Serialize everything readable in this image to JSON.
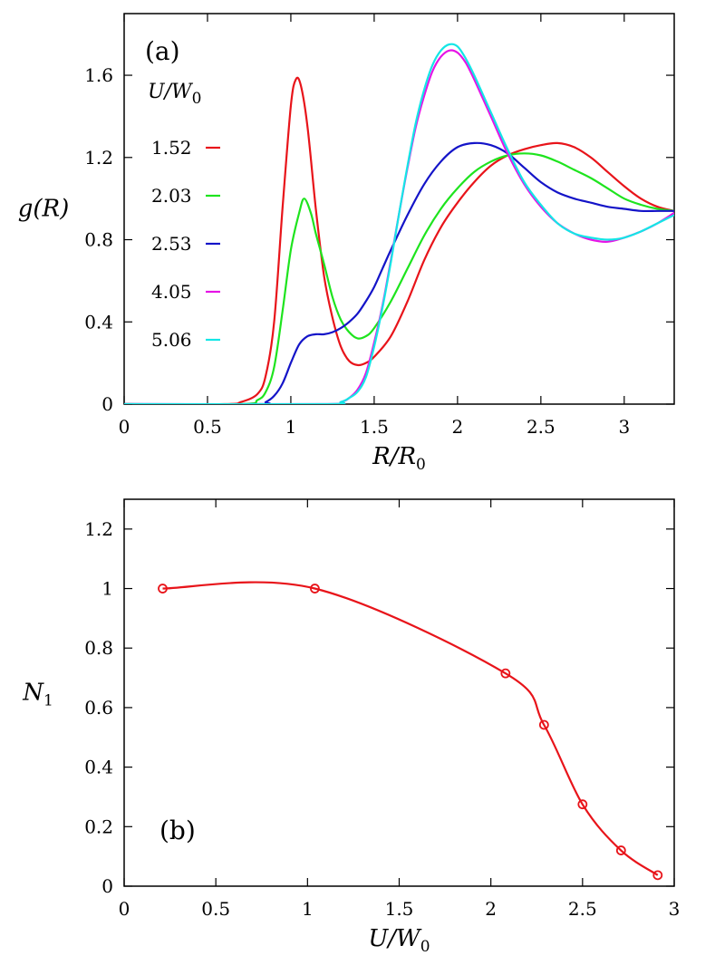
{
  "chart_data": [
    {
      "type": "line",
      "panel_label": "(a)",
      "xlabel": "R/R",
      "xlabel_sub": "0",
      "ylabel": "g(R)",
      "xlim": [
        0,
        3.3
      ],
      "ylim": [
        0,
        1.9
      ],
      "x_ticks": [
        0,
        0.5,
        1,
        1.5,
        2,
        2.5,
        3
      ],
      "x_tick_labels": [
        "0",
        "0.5",
        "1",
        "1.5",
        "2",
        "2.5",
        "3"
      ],
      "y_ticks": [
        0,
        0.4,
        0.8,
        1.2,
        1.6
      ],
      "y_tick_labels": [
        "0",
        "0.4",
        "0.8",
        "1.2",
        "1.6"
      ],
      "legend_title": "U/W",
      "legend_title_sub": "0",
      "legend_position": "left",
      "series": [
        {
          "name": "1.52",
          "color": "#e8141a",
          "x": [
            0,
            0.6,
            0.7,
            0.8,
            0.85,
            0.9,
            0.95,
            1.0,
            1.03,
            1.06,
            1.1,
            1.15,
            1.2,
            1.25,
            1.3,
            1.35,
            1.4,
            1.45,
            1.5,
            1.6,
            1.7,
            1.8,
            1.9,
            2.0,
            2.1,
            2.2,
            2.3,
            2.4,
            2.5,
            2.6,
            2.7,
            2.8,
            2.9,
            3.0,
            3.1,
            3.2,
            3.3
          ],
          "y": [
            0,
            0.0,
            0.01,
            0.05,
            0.14,
            0.4,
            0.95,
            1.45,
            1.58,
            1.55,
            1.35,
            0.95,
            0.62,
            0.42,
            0.28,
            0.21,
            0.19,
            0.2,
            0.23,
            0.33,
            0.5,
            0.7,
            0.86,
            0.98,
            1.08,
            1.16,
            1.21,
            1.24,
            1.26,
            1.27,
            1.25,
            1.2,
            1.13,
            1.06,
            1.0,
            0.96,
            0.94
          ]
        },
        {
          "name": "2.03",
          "color": "#1ee41e",
          "x": [
            0,
            0.7,
            0.8,
            0.85,
            0.9,
            0.95,
            1.0,
            1.05,
            1.08,
            1.12,
            1.15,
            1.2,
            1.25,
            1.3,
            1.35,
            1.4,
            1.45,
            1.5,
            1.6,
            1.7,
            1.8,
            1.9,
            2.0,
            2.1,
            2.2,
            2.3,
            2.4,
            2.5,
            2.6,
            2.7,
            2.8,
            2.9,
            3.0,
            3.1,
            3.2,
            3.3
          ],
          "y": [
            0,
            0.0,
            0.02,
            0.06,
            0.18,
            0.45,
            0.75,
            0.93,
            1.0,
            0.93,
            0.83,
            0.68,
            0.52,
            0.41,
            0.35,
            0.32,
            0.33,
            0.37,
            0.5,
            0.66,
            0.82,
            0.95,
            1.05,
            1.13,
            1.18,
            1.21,
            1.22,
            1.21,
            1.18,
            1.14,
            1.1,
            1.05,
            1.0,
            0.97,
            0.95,
            0.94
          ]
        },
        {
          "name": "2.53",
          "color": "#1414c8",
          "x": [
            0,
            0.8,
            0.85,
            0.9,
            0.95,
            1.0,
            1.05,
            1.1,
            1.15,
            1.2,
            1.25,
            1.3,
            1.35,
            1.4,
            1.45,
            1.5,
            1.55,
            1.6,
            1.7,
            1.8,
            1.9,
            2.0,
            2.1,
            2.2,
            2.3,
            2.4,
            2.5,
            2.6,
            2.7,
            2.8,
            2.9,
            3.0,
            3.1,
            3.2,
            3.3
          ],
          "y": [
            0,
            0.0,
            0.01,
            0.04,
            0.1,
            0.2,
            0.29,
            0.33,
            0.34,
            0.34,
            0.35,
            0.37,
            0.4,
            0.44,
            0.5,
            0.57,
            0.66,
            0.75,
            0.92,
            1.07,
            1.18,
            1.25,
            1.27,
            1.26,
            1.22,
            1.15,
            1.08,
            1.03,
            1.0,
            0.98,
            0.96,
            0.95,
            0.94,
            0.94,
            0.94
          ]
        },
        {
          "name": "4.05",
          "color": "#e614e6",
          "x": [
            0,
            1.2,
            1.3,
            1.35,
            1.4,
            1.45,
            1.5,
            1.55,
            1.6,
            1.65,
            1.7,
            1.75,
            1.8,
            1.85,
            1.9,
            1.95,
            2.0,
            2.05,
            2.1,
            2.2,
            2.3,
            2.4,
            2.5,
            2.6,
            2.7,
            2.8,
            2.9,
            3.0,
            3.1,
            3.2,
            3.3
          ],
          "y": [
            0,
            0.0,
            0.01,
            0.03,
            0.07,
            0.15,
            0.3,
            0.48,
            0.7,
            0.93,
            1.15,
            1.35,
            1.5,
            1.62,
            1.69,
            1.72,
            1.71,
            1.66,
            1.58,
            1.4,
            1.22,
            1.07,
            0.96,
            0.88,
            0.83,
            0.8,
            0.79,
            0.81,
            0.84,
            0.88,
            0.93
          ]
        },
        {
          "name": "5.06",
          "color": "#14e6e6",
          "x": [
            0,
            1.2,
            1.3,
            1.35,
            1.4,
            1.45,
            1.5,
            1.55,
            1.6,
            1.65,
            1.7,
            1.75,
            1.8,
            1.85,
            1.9,
            1.95,
            2.0,
            2.05,
            2.1,
            2.2,
            2.3,
            2.4,
            2.5,
            2.6,
            2.7,
            2.8,
            2.9,
            3.0,
            3.1,
            3.2,
            3.3
          ],
          "y": [
            0,
            0.0,
            0.01,
            0.03,
            0.06,
            0.13,
            0.28,
            0.47,
            0.69,
            0.93,
            1.16,
            1.37,
            1.53,
            1.65,
            1.72,
            1.75,
            1.74,
            1.68,
            1.6,
            1.42,
            1.24,
            1.08,
            0.97,
            0.88,
            0.83,
            0.81,
            0.8,
            0.81,
            0.84,
            0.88,
            0.92
          ]
        }
      ]
    },
    {
      "type": "line",
      "panel_label": "(b)",
      "xlabel": "U/W",
      "xlabel_sub": "0",
      "ylabel": "N",
      "ylabel_sub": "1",
      "xlim": [
        0,
        3
      ],
      "ylim": [
        0,
        1.3
      ],
      "x_ticks": [
        0,
        0.5,
        1,
        1.5,
        2,
        2.5,
        3
      ],
      "x_tick_labels": [
        "0",
        "0.5",
        "1",
        "1.5",
        "2",
        "2.5",
        "3"
      ],
      "y_ticks": [
        0,
        0.2,
        0.4,
        0.6,
        0.8,
        1,
        1.2
      ],
      "y_tick_labels": [
        "0",
        "0.2",
        "0.4",
        "0.6",
        "0.8",
        "1",
        "1.2"
      ],
      "series": [
        {
          "name": "N1",
          "color": "#e8141a",
          "markers": "open-circle",
          "x": [
            0.21,
            1.04,
            2.08,
            2.29,
            2.5,
            2.71,
            2.91
          ],
          "y": [
            1.0,
            1.0,
            0.715,
            0.542,
            0.275,
            0.12,
            0.037
          ]
        }
      ]
    }
  ]
}
